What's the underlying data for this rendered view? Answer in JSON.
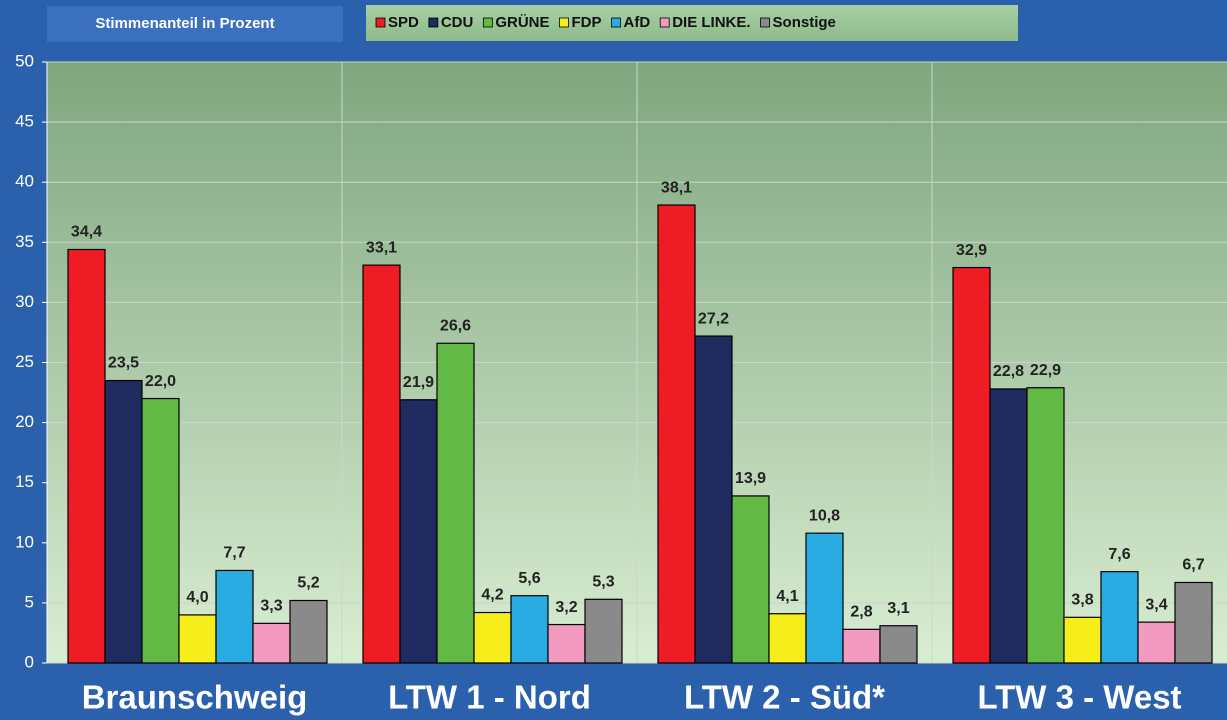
{
  "chart_data": {
    "type": "bar",
    "title": "Stimmenanteil in Prozent",
    "categories": [
      "Braunschweig",
      "LTW 1 - Nord",
      "LTW 2 - Süd*",
      "LTW 3 - West"
    ],
    "series": [
      {
        "name": "SPD",
        "color": "#ee1c25",
        "values": [
          34.4,
          33.1,
          38.1,
          32.9
        ],
        "value_labels": [
          "34,4",
          "33,1",
          "38,1",
          "32,9"
        ]
      },
      {
        "name": "CDU",
        "color": "#1f2a5e",
        "values": [
          23.5,
          21.9,
          27.2,
          22.8
        ],
        "value_labels": [
          "23,5",
          "21,9",
          "27,2",
          "22,8"
        ]
      },
      {
        "name": "GRÜNE",
        "color": "#63b946",
        "values": [
          22.0,
          26.6,
          13.9,
          22.9
        ],
        "value_labels": [
          "22,0",
          "26,6",
          "13,9",
          "22,9"
        ]
      },
      {
        "name": "FDP",
        "color": "#f5ee1a",
        "values": [
          4.0,
          4.2,
          4.1,
          3.8
        ],
        "value_labels": [
          "4,0",
          "4,2",
          "4,1",
          "3,8"
        ]
      },
      {
        "name": "AfD",
        "color": "#2aabe2",
        "values": [
          7.7,
          5.6,
          10.8,
          7.6
        ],
        "value_labels": [
          "7,7",
          "5,6",
          "10,8",
          "7,6"
        ]
      },
      {
        "name": "DIE LINKE.",
        "color": "#f29ac0",
        "values": [
          3.3,
          3.2,
          2.8,
          3.4
        ],
        "value_labels": [
          "3,3",
          "3,2",
          "2,8",
          "3,4"
        ]
      },
      {
        "name": "Sonstige",
        "color": "#8a8a8a",
        "values": [
          5.2,
          5.3,
          3.1,
          6.7
        ],
        "value_labels": [
          "5,2",
          "5,3",
          "3,1",
          "6,7"
        ]
      }
    ],
    "ylim": [
      0,
      50
    ],
    "yticks": [
      0,
      5,
      10,
      15,
      20,
      25,
      30,
      35,
      40,
      45,
      50
    ],
    "grid": true
  }
}
